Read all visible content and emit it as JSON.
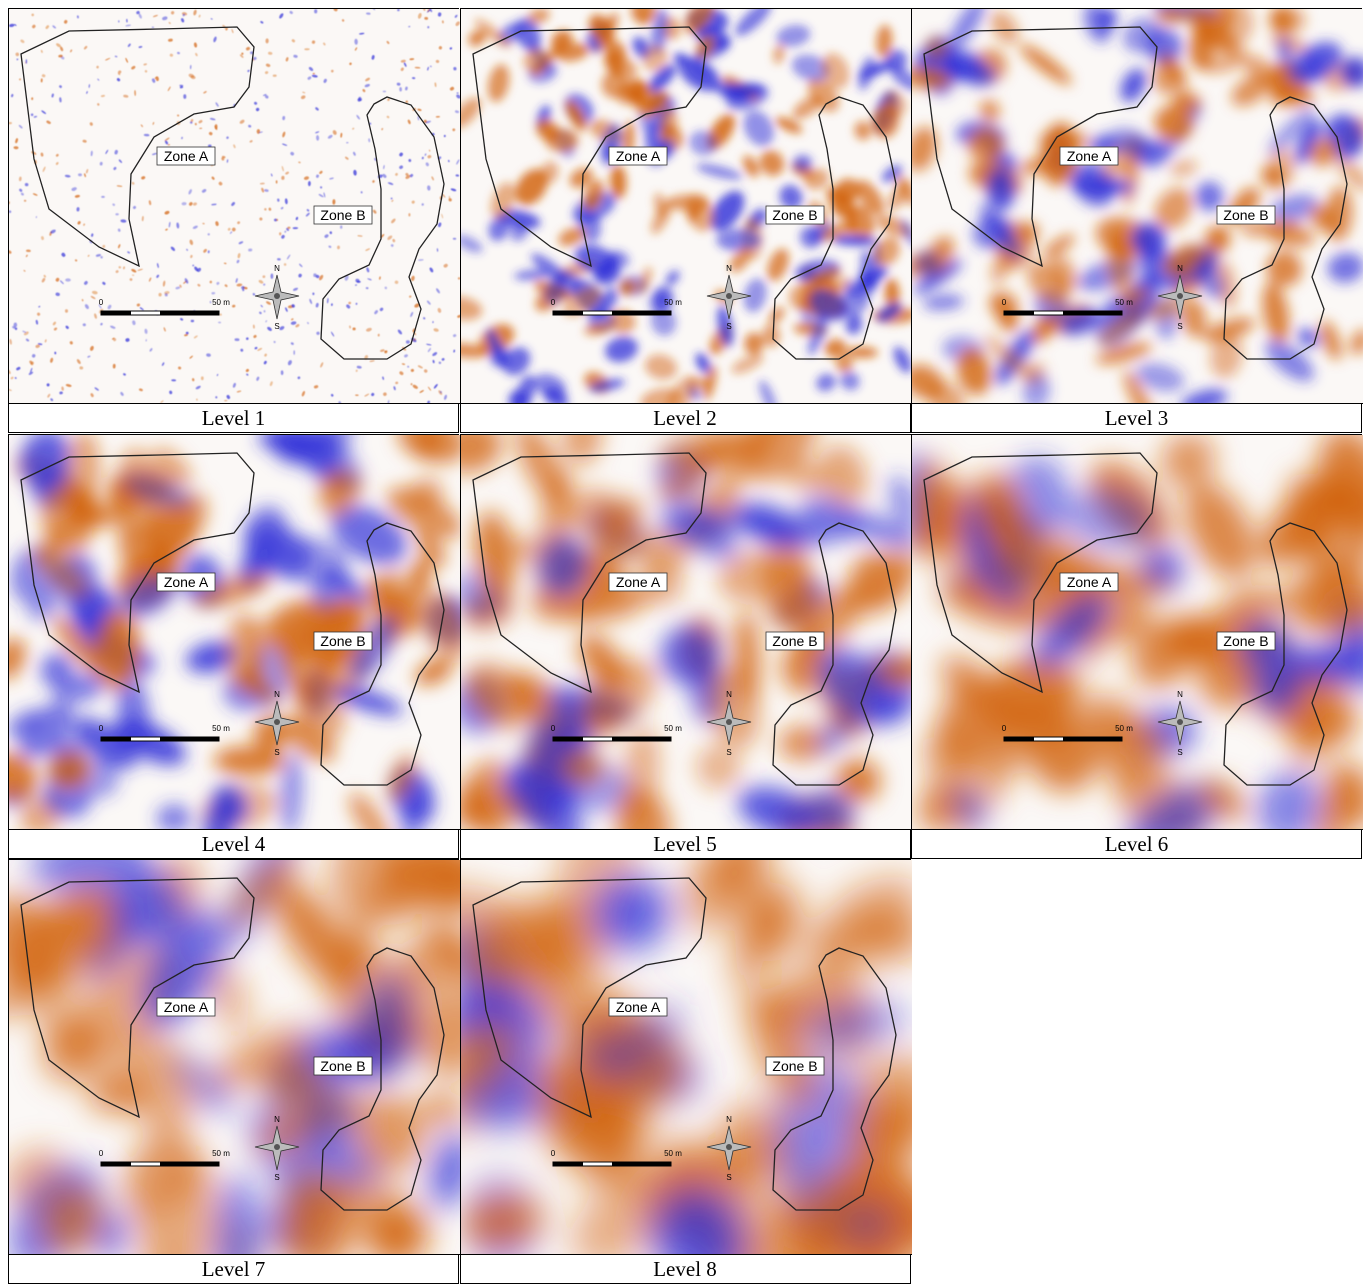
{
  "panels": [
    {
      "caption": "Level 1",
      "zone_a": "Zone A",
      "zone_b": "Zone B",
      "scale_start": "0",
      "scale_end": "50 m",
      "north": "N",
      "south": "S"
    },
    {
      "caption": "Level 2",
      "zone_a": "Zone A",
      "zone_b": "Zone B",
      "scale_start": "0",
      "scale_end": "50 m",
      "north": "N",
      "south": "S"
    },
    {
      "caption": "Level 3",
      "zone_a": "Zone A",
      "zone_b": "Zone B",
      "scale_start": "0",
      "scale_end": "50 m",
      "north": "N",
      "south": "S"
    },
    {
      "caption": "Level 4",
      "zone_a": "Zone A",
      "zone_b": "Zone B",
      "scale_start": "0",
      "scale_end": "50 m",
      "north": "N",
      "south": "S"
    },
    {
      "caption": "Level 5",
      "zone_a": "Zone A",
      "zone_b": "Zone B",
      "scale_start": "0",
      "scale_end": "50 m",
      "north": "N",
      "south": "S"
    },
    {
      "caption": "Level 6",
      "zone_a": "Zone A",
      "zone_b": "Zone B",
      "scale_start": "0",
      "scale_end": "50 m",
      "north": "N",
      "south": "S"
    },
    {
      "caption": "Level 7",
      "zone_a": "Zone A",
      "zone_b": "Zone B",
      "scale_start": "0",
      "scale_end": "50 m",
      "north": "N",
      "south": "S"
    },
    {
      "caption": "Level 8",
      "zone_a": "Zone A",
      "zone_b": "Zone B",
      "scale_start": "0",
      "scale_end": "50 m",
      "north": "N",
      "south": "S"
    }
  ]
}
